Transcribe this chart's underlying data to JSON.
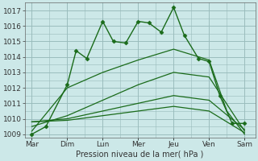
{
  "background_color": "#cce8e8",
  "grid_color": "#99bbbb",
  "line_color": "#1a6b1a",
  "xlabel": "Pression niveau de la mer( hPa )",
  "ylim": [
    1008.8,
    1017.5
  ],
  "yticks": [
    1009,
    1010,
    1011,
    1012,
    1013,
    1014,
    1015,
    1016,
    1017
  ],
  "xlabels": [
    "Mar",
    "Dim",
    "Lun",
    "Mer",
    "Jeu",
    "Ven",
    "Sam"
  ],
  "xpositions": [
    0,
    1,
    2,
    3,
    4,
    5,
    6
  ],
  "series": [
    {
      "x": [
        0,
        0.4,
        1.0,
        1.25,
        1.55,
        2.0,
        2.3,
        2.65,
        3.0,
        3.3,
        3.65,
        4.0,
        4.3,
        4.7,
        5.0,
        5.3,
        5.65,
        6.0
      ],
      "y": [
        1009.0,
        1009.5,
        1012.2,
        1014.4,
        1013.9,
        1016.3,
        1015.0,
        1014.9,
        1016.3,
        1016.2,
        1015.6,
        1017.2,
        1015.4,
        1013.9,
        1013.7,
        1011.5,
        1009.7,
        1009.7
      ],
      "marker": "D",
      "markersize": 2.5,
      "linestyle": "-",
      "linewidth": 1.0
    },
    {
      "x": [
        0,
        1,
        2,
        3,
        4,
        5,
        5.5,
        6.0
      ],
      "y": [
        1009.2,
        1012.0,
        1013.0,
        1013.8,
        1014.5,
        1013.8,
        1010.5,
        1009.0
      ],
      "marker": null,
      "markersize": 0,
      "linestyle": "-",
      "linewidth": 0.9
    },
    {
      "x": [
        0,
        1,
        2,
        3,
        4,
        5,
        6
      ],
      "y": [
        1009.5,
        1010.2,
        1011.2,
        1012.2,
        1013.0,
        1012.7,
        1009.2
      ],
      "marker": null,
      "markersize": 0,
      "linestyle": "-",
      "linewidth": 0.9
    },
    {
      "x": [
        0,
        1,
        2,
        3,
        4,
        5,
        6
      ],
      "y": [
        1009.8,
        1010.0,
        1010.5,
        1011.0,
        1011.5,
        1011.2,
        1009.3
      ],
      "marker": null,
      "markersize": 0,
      "linestyle": "-",
      "linewidth": 0.9
    },
    {
      "x": [
        0,
        1,
        2,
        3,
        4,
        5,
        6
      ],
      "y": [
        1009.8,
        1009.9,
        1010.2,
        1010.5,
        1010.8,
        1010.5,
        1009.1
      ],
      "marker": null,
      "markersize": 0,
      "linestyle": "-",
      "linewidth": 0.9
    }
  ]
}
